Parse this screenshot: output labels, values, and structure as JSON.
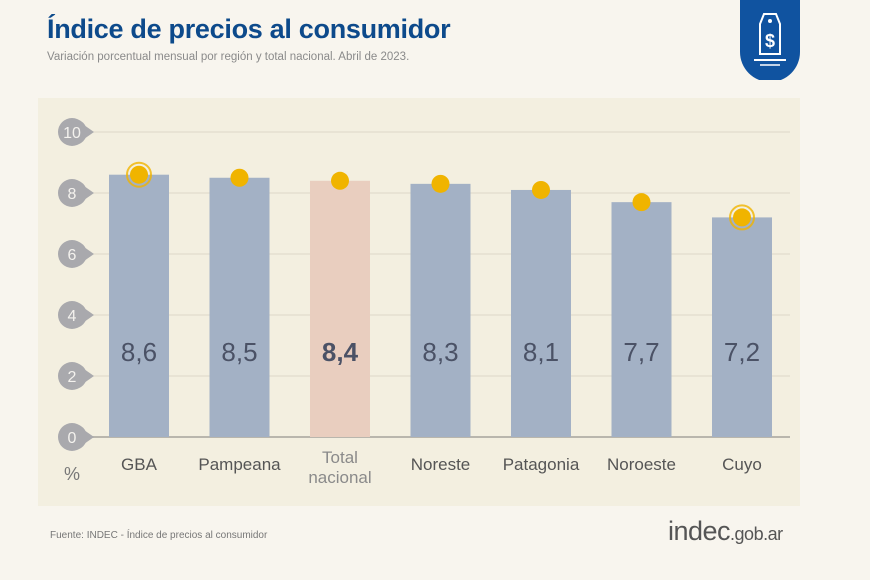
{
  "header": {
    "title": "Índice de precios al consumidor",
    "subtitle": "Variación porcentual mensual por región y total nacional. Abril de 2023.",
    "badge_icon": "price-tag-dollar-icon"
  },
  "chart_data": {
    "type": "bar",
    "title": "Índice de precios al consumidor",
    "subtitle": "Variación porcentual mensual por región y total nacional. Abril de 2023.",
    "ylabel": "%",
    "ylim": [
      0,
      10
    ],
    "yticks": [
      0,
      2,
      4,
      6,
      8,
      10
    ],
    "grid": true,
    "categories": [
      "GBA",
      "Pampeana",
      "Total nacional",
      "Noreste",
      "Patagonia",
      "Noroeste",
      "Cuyo"
    ],
    "values": [
      8.6,
      8.5,
      8.4,
      8.3,
      8.1,
      7.7,
      7.2
    ],
    "value_labels": [
      "8,6",
      "8,5",
      "8,4",
      "8,3",
      "8,1",
      "7,7",
      "7,2"
    ],
    "highlight": "Total nacional",
    "ringed": [
      "GBA",
      "Cuyo"
    ],
    "colors": {
      "bar": "#a3b1c5",
      "highlight": "#e9cebf",
      "dot": "#f0b400",
      "grid": "#dcd7c8",
      "tick_bg": "#a9a9ad",
      "text": "#4b5266"
    }
  },
  "footer": {
    "source": "Fuente: INDEC - Índice de precios al consumidor",
    "logo_main": "indec",
    "logo_suffix": ".gob.ar"
  }
}
